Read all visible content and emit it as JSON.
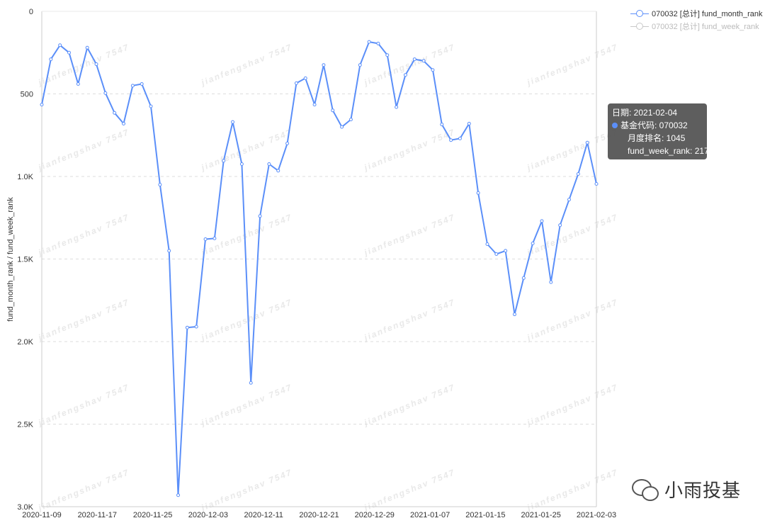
{
  "chart_data": {
    "type": "line",
    "ylabel": "fund_month_rank / fund_week_rank",
    "xlabel": "",
    "ylim": [
      0,
      3000
    ],
    "y_inverted": true,
    "y_ticks": [
      0,
      500,
      1000,
      1500,
      2000,
      2500,
      3000
    ],
    "y_tick_labels": [
      "0",
      "500",
      "1.0K",
      "1.5K",
      "2.0K",
      "2.5K",
      "3.0K"
    ],
    "x_tick_labels": [
      "2020-11-09",
      "2020-11-17",
      "2020-11-25",
      "2020-12-03",
      "2020-12-11",
      "2020-12-21",
      "2020-12-29",
      "2021-01-07",
      "2021-01-15",
      "2021-01-25",
      "2021-02-03"
    ],
    "grid": "horizontal dashed",
    "legend_position": "top-right",
    "series": [
      {
        "name": "070032 [总计] fund_month_rank",
        "color": "#5b8ff9",
        "visible": true,
        "values": [
          565,
          290,
          205,
          250,
          440,
          220,
          320,
          495,
          615,
          680,
          450,
          440,
          575,
          1050,
          1450,
          2930,
          1915,
          1910,
          1380,
          1375,
          905,
          670,
          925,
          2250,
          1240,
          925,
          965,
          800,
          435,
          405,
          565,
          325,
          600,
          700,
          655,
          325,
          185,
          195,
          265,
          580,
          385,
          290,
          300,
          355,
          685,
          780,
          770,
          680,
          1100,
          1410,
          1470,
          1450,
          1835,
          1615,
          1405,
          1270,
          1640,
          1295,
          1140,
          985,
          795,
          1045
        ]
      },
      {
        "name": "070032 [总计] fund_week_rank",
        "color": "#c8c8c8",
        "visible": false,
        "values": []
      }
    ]
  },
  "legend": {
    "item1": "070032 [总计] fund_month_rank",
    "item2": "070032 [总计] fund_week_rank",
    "item1_color": "#5b8ff9",
    "item2_color": "#c8c8c8"
  },
  "tooltip": {
    "date_line": "日期: 2021-02-04",
    "code_line": "基金代码: 070032",
    "month_line": "月度排名: 1045",
    "week_line": "fund_week_rank: 217",
    "dot_color": "#5b8ff9"
  },
  "watermark": {
    "repeat_text": "jianfengshav 7547",
    "brand_text": "小雨投基"
  }
}
